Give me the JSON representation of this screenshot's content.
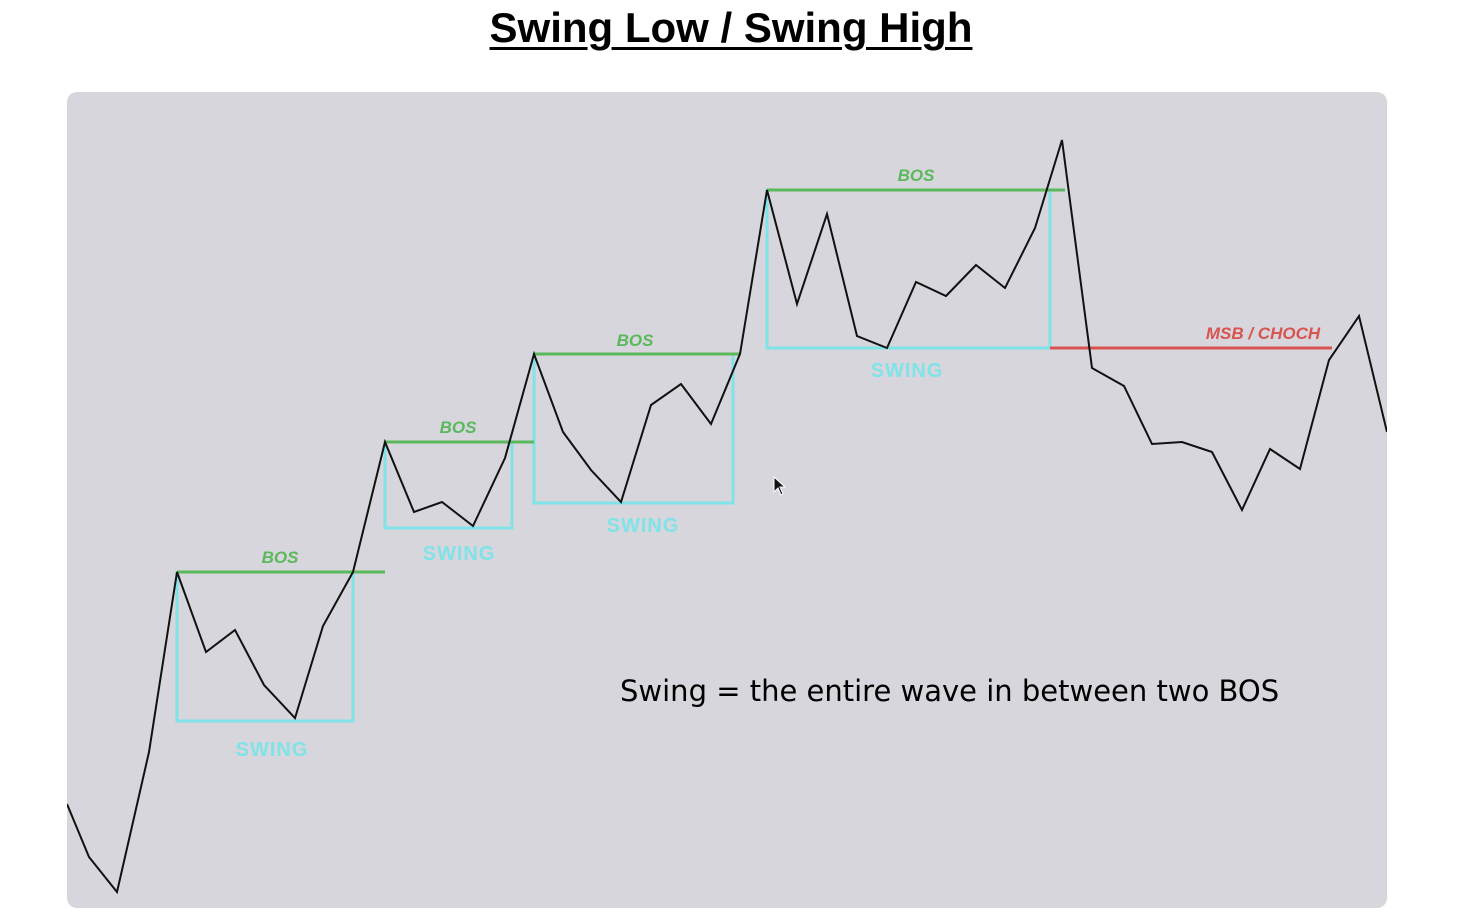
{
  "title": "Swing Low / Swing High",
  "colors": {
    "panel_bg": "#d6d6dc",
    "price_line": "#111111",
    "bos": "#5cb85c",
    "swing_box": "#7fe3e8",
    "msb": "#d9534f",
    "caption": "#000000"
  },
  "labels": {
    "bos": "BOS",
    "swing": "SWING",
    "msb": "MSB / CHOCH",
    "caption": "Swing = the entire wave in between two BOS"
  },
  "icons": {
    "cursor": "mouse-pointer-icon"
  }
}
